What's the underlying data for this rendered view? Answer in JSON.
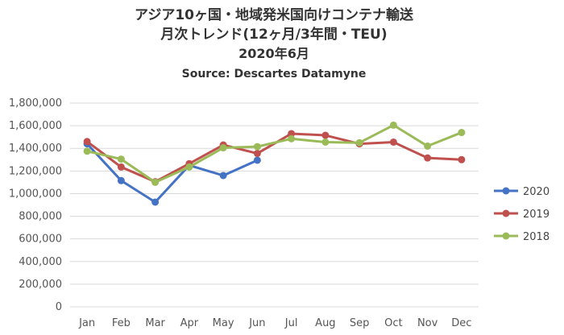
{
  "chart_data": {
    "type": "line",
    "title_lines": [
      "アジア10ヶ国・地域発米国向けコンテナ輸送",
      "月次トレンド(12ヶ月/3年間・TEU)",
      "2020年6月",
      "Source: Descartes Datamyne"
    ],
    "xlabel": "",
    "ylabel": "",
    "categories": [
      "Jan",
      "Feb",
      "Mar",
      "Apr",
      "May",
      "Jun",
      "Jul",
      "Aug",
      "Sep",
      "Oct",
      "Nov",
      "Dec"
    ],
    "ylim": [
      0,
      1800000
    ],
    "yticks": [
      0,
      200000,
      400000,
      600000,
      800000,
      1000000,
      1200000,
      1400000,
      1600000,
      1800000
    ],
    "ytick_labels": [
      "0",
      "200,000",
      "400,000",
      "600,000",
      "800,000",
      "1,000,000",
      "1,200,000",
      "1,400,000",
      "1,600,000",
      "1,800,000"
    ],
    "grid": true,
    "legend_position": "right",
    "series": [
      {
        "name": "2020",
        "color": "#4472C4",
        "values": [
          1440000,
          1115000,
          925000,
          1250000,
          1160000,
          1295000,
          null,
          null,
          null,
          null,
          null,
          null
        ]
      },
      {
        "name": "2019",
        "color": "#C0504D",
        "values": [
          1460000,
          1235000,
          1105000,
          1265000,
          1430000,
          1355000,
          1530000,
          1515000,
          1440000,
          1455000,
          1315000,
          1300000
        ]
      },
      {
        "name": "2018",
        "color": "#9BBB59",
        "values": [
          1375000,
          1305000,
          1100000,
          1235000,
          1405000,
          1415000,
          1485000,
          1455000,
          1450000,
          1605000,
          1420000,
          1540000
        ]
      }
    ]
  }
}
